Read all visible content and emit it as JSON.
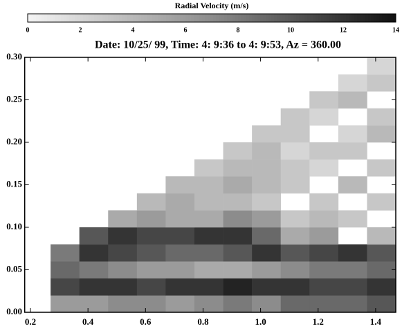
{
  "chart_data": {
    "type": "heatmap",
    "colorbar": {
      "title": "Radial Velocity (m/s)",
      "lim": [
        0,
        14
      ],
      "ticks": [
        0,
        2,
        4,
        6,
        8,
        10,
        12,
        14
      ]
    },
    "colormap": [
      "#f4f4f4",
      "#8c8c8c",
      "#111111"
    ],
    "title": "Date: 10/25/  99, Time:  4: 9:36 to  4: 9:53, Az = 360.00",
    "xlim": [
      0.18,
      1.47
    ],
    "xticks": [
      0.2,
      0.4,
      0.6,
      0.8,
      {
        "value": 1.0,
        "label": "1.0"
      },
      1.2,
      1.4
    ],
    "ylim": [
      0,
      0.3
    ],
    "yticks": [
      {
        "value": 0,
        "label": "0.00"
      },
      {
        "value": 0.05,
        "label": "0.05"
      },
      {
        "value": 0.1,
        "label": "0.10"
      },
      {
        "value": 0.15,
        "label": "0.15"
      },
      {
        "value": 0.2,
        "label": "0.20"
      },
      {
        "value": 0.25,
        "label": "0.25"
      },
      {
        "value": 0.3,
        "label": "0.30"
      }
    ],
    "x_edges": [
      0.27,
      0.37,
      0.47,
      0.57,
      0.67,
      0.77,
      0.87,
      0.97,
      1.07,
      1.17,
      1.27,
      1.37,
      1.47
    ],
    "y_edges": [
      0,
      0.02,
      0.04,
      0.06,
      0.08,
      0.1,
      0.12,
      0.14,
      0.16,
      0.18,
      0.2,
      0.22,
      0.24,
      0.26,
      0.28,
      0.3
    ],
    "values": [
      [
        6,
        6,
        7,
        7,
        6,
        7,
        8,
        7,
        9,
        9,
        9,
        10
      ],
      [
        11,
        12,
        12,
        11,
        12,
        12,
        13,
        12,
        12,
        11,
        11,
        12
      ],
      [
        9,
        8,
        7,
        6,
        6,
        5,
        5,
        6,
        7,
        8,
        8,
        9
      ],
      [
        8,
        12,
        11,
        10,
        9,
        9,
        10,
        12,
        10,
        11,
        12,
        10
      ],
      [
        null,
        10,
        12,
        11,
        11,
        12,
        12,
        9,
        5,
        6,
        null,
        4
      ],
      [
        null,
        null,
        5,
        6,
        5,
        5,
        7,
        6,
        3,
        4,
        3,
        null
      ],
      [
        null,
        null,
        null,
        4,
        5,
        4,
        4,
        3,
        null,
        3,
        null,
        3
      ],
      [
        null,
        null,
        null,
        null,
        4,
        4,
        5,
        4,
        3,
        null,
        4,
        null
      ],
      [
        null,
        null,
        null,
        null,
        null,
        3,
        4,
        4,
        3,
        2,
        null,
        3
      ],
      [
        null,
        null,
        null,
        null,
        null,
        null,
        3,
        4,
        2,
        3,
        3,
        null
      ],
      [
        null,
        null,
        null,
        null,
        null,
        null,
        null,
        3,
        3,
        null,
        2,
        4
      ],
      [
        null,
        null,
        null,
        null,
        null,
        null,
        null,
        null,
        3,
        2,
        null,
        3
      ],
      [
        null,
        null,
        null,
        null,
        null,
        null,
        null,
        null,
        null,
        3,
        4,
        null
      ],
      [
        null,
        null,
        null,
        null,
        null,
        null,
        null,
        null,
        null,
        null,
        2,
        3
      ],
      [
        null,
        null,
        null,
        null,
        null,
        null,
        null,
        null,
        null,
        null,
        null,
        2
      ]
    ]
  }
}
